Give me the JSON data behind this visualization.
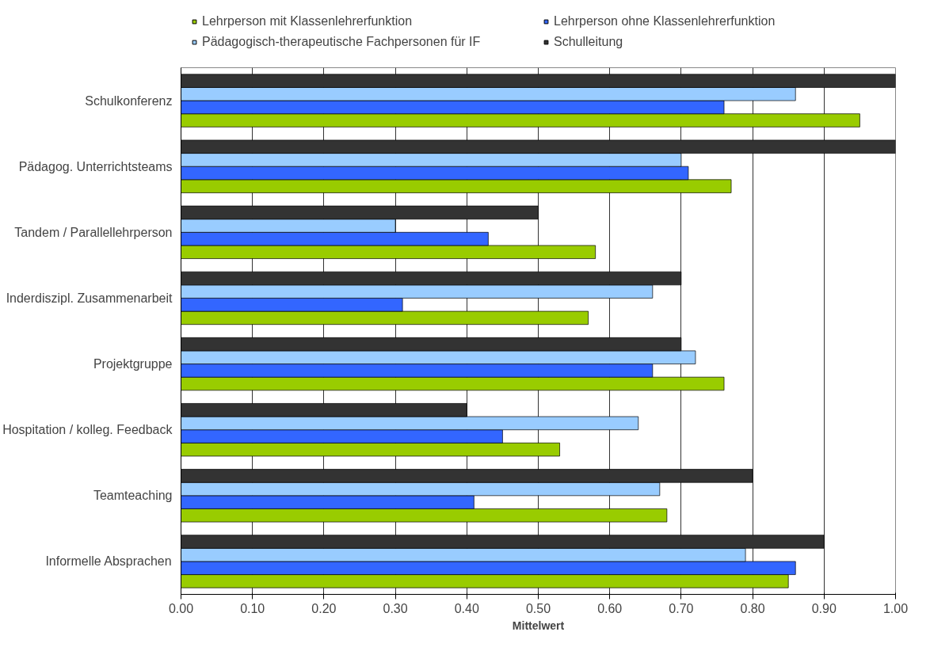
{
  "chart_data": {
    "type": "bar",
    "orientation": "horizontal",
    "xlabel": "Mittelwert",
    "categories": [
      "Schulkonferenz",
      "Pädagog. Unterrichtsteams",
      "Tandem / Parallellehrperson",
      "Inderdiszipl. Zusammenarbeit",
      "Projektgruppe",
      "Hospitation / kolleg. Feedback",
      "Teamteaching",
      "Informelle Absprachen"
    ],
    "series": [
      {
        "name": "Lehrperson mit Klassenlehrerfunktion",
        "color": "#99cc00",
        "values": [
          0.95,
          0.77,
          0.58,
          0.57,
          0.76,
          0.53,
          0.68,
          0.85
        ]
      },
      {
        "name": "Lehrperson ohne Klassenlehrerfunktion",
        "color": "#3366ff",
        "values": [
          0.76,
          0.71,
          0.43,
          0.31,
          0.66,
          0.45,
          0.41,
          0.86
        ]
      },
      {
        "name": "Pädagogisch-therapeutische Fachpersonen für IF",
        "color": "#99ccff",
        "values": [
          0.86,
          0.7,
          0.3,
          0.66,
          0.72,
          0.64,
          0.67,
          0.79
        ]
      },
      {
        "name": "Schulleitung",
        "color": "#333333",
        "values": [
          1.0,
          1.0,
          0.5,
          0.7,
          0.7,
          0.4,
          0.8,
          0.9
        ]
      }
    ],
    "xlim": [
      0,
      1
    ],
    "xticks": [
      {
        "value": 0,
        "label": "0.00"
      },
      {
        "value": 0.1,
        "label": "0.10"
      },
      {
        "value": 0.2,
        "label": "0.20"
      },
      {
        "value": 0.3,
        "label": "0.30"
      },
      {
        "value": 0.4,
        "label": "0.40"
      },
      {
        "value": 0.5,
        "label": "0.50"
      },
      {
        "value": 0.6,
        "label": "0.60"
      },
      {
        "value": 0.7,
        "label": "0.70"
      },
      {
        "value": 0.8,
        "label": "0.80"
      },
      {
        "value": 0.9,
        "label": "0.90"
      },
      {
        "value": 1,
        "label": "1.00"
      }
    ],
    "grid": "x",
    "legend": "top"
  }
}
